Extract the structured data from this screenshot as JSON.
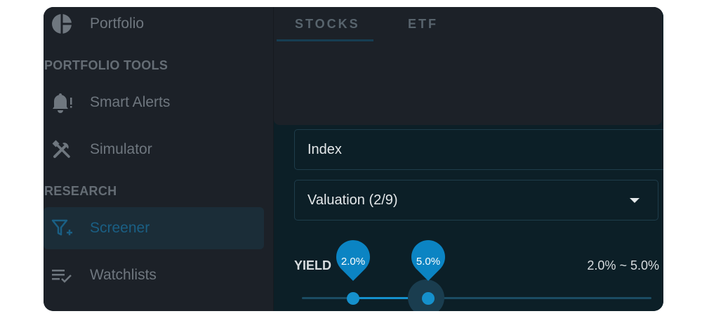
{
  "sidebar": {
    "portfolio_label": "Portfolio",
    "section_tools": "PORTFOLIO TOOLS",
    "smart_alerts_label": "Smart Alerts",
    "simulator_label": "Simulator",
    "section_research": "RESEARCH",
    "screener_label": "Screener",
    "watchlists_label": "Watchlists"
  },
  "tabs": {
    "stocks": "STOCKS",
    "etf": "ETF",
    "selected": "STOCKS"
  },
  "filters": {
    "index_value": "Index",
    "valuation_value": "Valuation (2/9)"
  },
  "yield": {
    "label": "YIELD",
    "min_label": "2.0%",
    "max_label": "5.0%",
    "range_text": "2.0% ~ 5.0%",
    "min": 2.0,
    "max": 5.0
  },
  "colors": {
    "accent": "#1590cc",
    "sidebar_bg": "#1c2128",
    "main_bg": "#0c1f27"
  }
}
